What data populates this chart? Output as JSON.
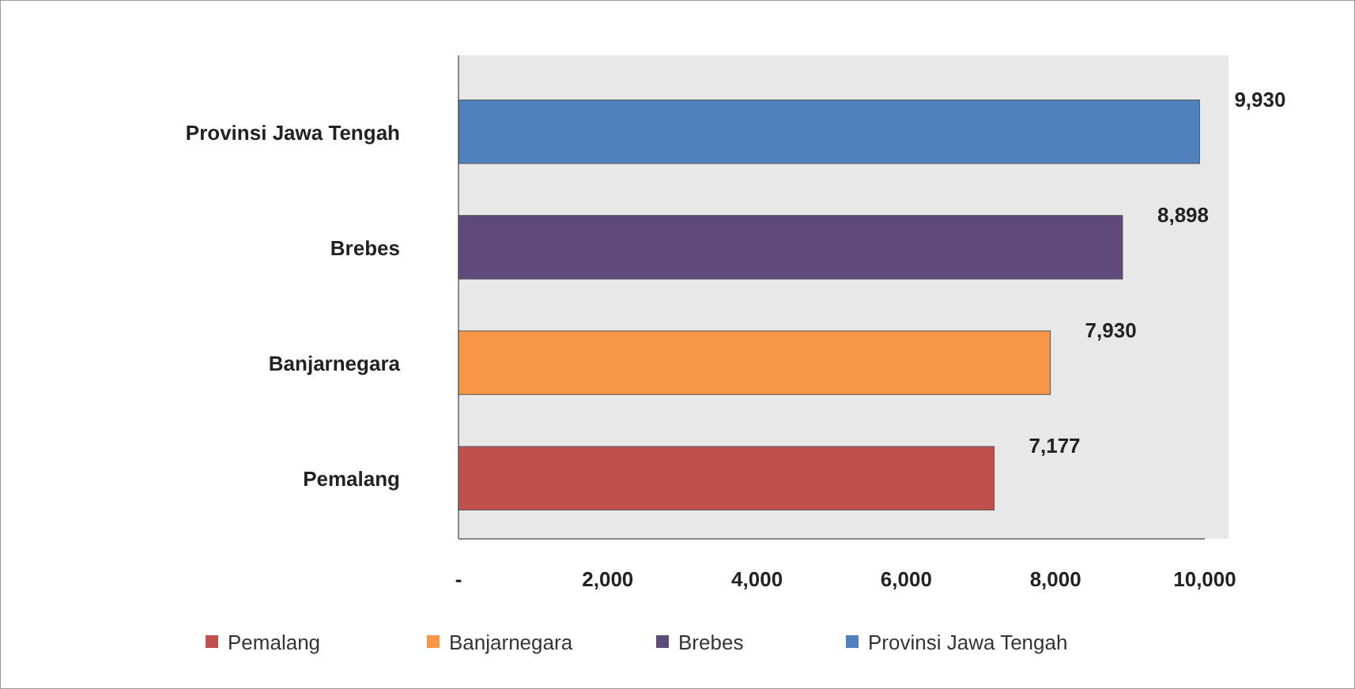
{
  "chart_data": {
    "type": "bar",
    "orientation": "horizontal",
    "categories": [
      "Provinsi Jawa Tengah",
      "Brebes",
      "Banjarnegara",
      "Pemalang"
    ],
    "series": [
      {
        "name": "Pemalang",
        "color": "#c0504d",
        "values": [
          null,
          null,
          null,
          7177
        ],
        "value_labels": [
          null,
          null,
          null,
          "7,177"
        ]
      },
      {
        "name": "Banjarnegara",
        "color": "#f79646",
        "values": [
          null,
          null,
          7930,
          null
        ],
        "value_labels": [
          null,
          null,
          "7,930",
          null
        ]
      },
      {
        "name": "Brebes",
        "color": "#604a7b",
        "values": [
          null,
          8898,
          null,
          null
        ],
        "value_labels": [
          null,
          "8,898",
          null,
          null
        ]
      },
      {
        "name": "Provinsi Jawa Tengah",
        "color": "#4f81bd",
        "values": [
          9930,
          null,
          null,
          null
        ],
        "value_labels": [
          "9,930",
          null,
          null,
          null
        ]
      }
    ],
    "xlim": [
      0,
      10000
    ],
    "xticks": [
      {
        "value": 0,
        "label": "-"
      },
      {
        "value": 2000,
        "label": "2,000"
      },
      {
        "value": 4000,
        "label": "4,000"
      },
      {
        "value": 6000,
        "label": "6,000"
      },
      {
        "value": 8000,
        "label": "8,000"
      },
      {
        "value": 10000,
        "label": "10,000"
      }
    ],
    "legend": "bottom"
  }
}
